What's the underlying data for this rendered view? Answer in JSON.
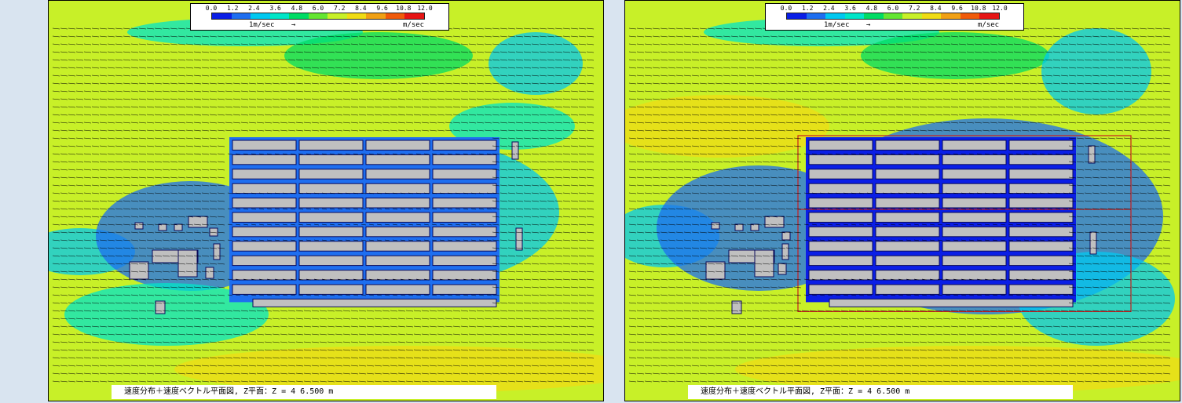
{
  "chart_data": [
    {
      "type": "heatmap",
      "panel": "left",
      "colorbar": {
        "ticks": [
          "0.0",
          "1.2",
          "2.4",
          "3.6",
          "4.8",
          "6.0",
          "7.2",
          "8.4",
          "9.6",
          "10.8",
          "12.0"
        ],
        "colors": [
          "#0a1ee6",
          "#1e6ef0",
          "#00c8f0",
          "#00e6c8",
          "#00dc64",
          "#64e632",
          "#c8f028",
          "#f0dc14",
          "#f0a014",
          "#f05a0a",
          "#e61414"
        ],
        "range": [
          0.0,
          12.0
        ],
        "reference_vector_label": "1m/sec",
        "reference_arrow": "→",
        "unit": "m/sec"
      },
      "caption": "速度分布＋速度ベクトル平面図, Z平面：Z = 4    6.500  m",
      "background_speed": 7.2,
      "wind_direction": "from east (arrows point west)",
      "building_rows": 11,
      "building_columns": 4,
      "perimeter_wall": false
    },
    {
      "type": "heatmap",
      "panel": "right",
      "colorbar": {
        "ticks": [
          "0.0",
          "1.2",
          "2.4",
          "3.6",
          "4.8",
          "6.0",
          "7.2",
          "8.4",
          "9.6",
          "10.8",
          "12.0"
        ],
        "colors": [
          "#0a1ee6",
          "#1e6ef0",
          "#00c8f0",
          "#00e6c8",
          "#00dc64",
          "#64e632",
          "#c8f028",
          "#f0dc14",
          "#f0a014",
          "#f05a0a",
          "#e61414"
        ],
        "range": [
          0.0,
          12.0
        ],
        "reference_vector_label": "1m/sec",
        "reference_arrow": "→",
        "unit": "m/sec"
      },
      "caption": "速度分布＋速度ベクトル平面図, Z平面：Z = 4    6.500  m",
      "background_speed": 7.2,
      "wind_direction": "from east (arrows point west)",
      "building_rows": 11,
      "building_columns": 4,
      "perimeter_wall": true
    }
  ],
  "colors": {
    "ambient_field": "#b4e646",
    "wake_zone": "#1e50e6",
    "building_fill": "#c0c0c0",
    "gap_fill": "#0a0a5a",
    "wall": "#c81e1e",
    "vector": "#000000"
  }
}
